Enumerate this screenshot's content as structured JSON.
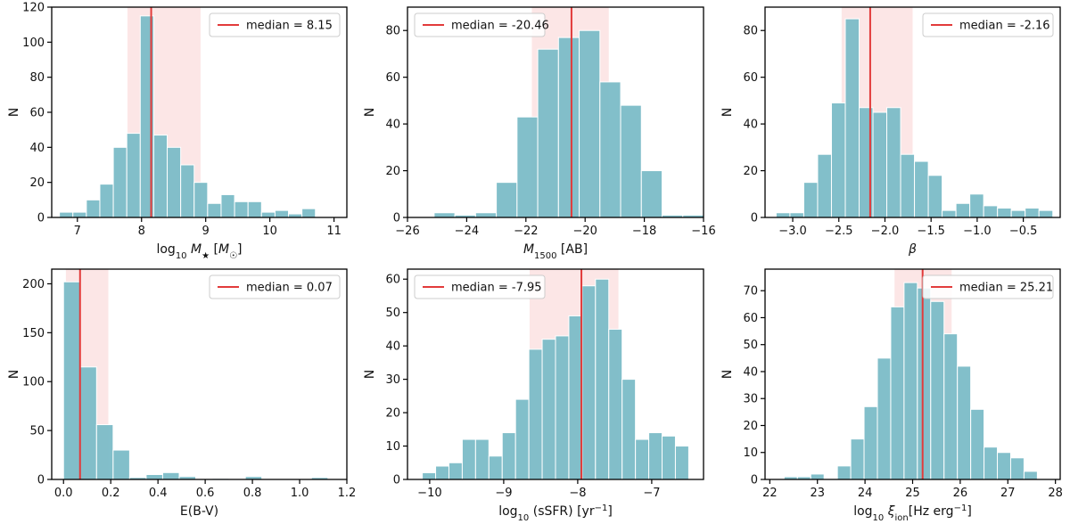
{
  "colors": {
    "bar": "#7bbcc7",
    "median": "#e23b3b",
    "band": "#fbdede",
    "axis": "#000000"
  },
  "chart_data": [
    {
      "type": "bar",
      "title": "",
      "xlabel": "log10 M★ [M☉]",
      "ylabel": "N",
      "xlim": [
        6.6,
        11.2
      ],
      "ylim": [
        0,
        120
      ],
      "xticks": [
        7,
        8,
        9,
        10,
        11
      ],
      "xtick_labels": [
        "7",
        "8",
        "9",
        "10",
        "11"
      ],
      "yticks": [
        0,
        20,
        40,
        60,
        80,
        100,
        120
      ],
      "ytick_labels": [
        "0",
        "20",
        "40",
        "60",
        "80",
        "100",
        "120"
      ],
      "bin_edges": [
        6.72,
        6.93,
        7.14,
        7.35,
        7.56,
        7.77,
        7.98,
        8.19,
        8.4,
        8.61,
        8.82,
        9.03,
        9.24,
        9.45,
        9.66,
        9.87,
        10.08,
        10.29,
        10.5,
        10.71,
        10.92
      ],
      "values": [
        3,
        3,
        10,
        19,
        40,
        48,
        115,
        47,
        40,
        30,
        20,
        8,
        13,
        9,
        9,
        3,
        4,
        2,
        5,
        0
      ],
      "median": 8.15,
      "band": [
        7.78,
        8.92
      ],
      "legend": "median = 8.15",
      "legend_position": "top-right"
    },
    {
      "type": "bar",
      "title": "",
      "xlabel": "M1500 [AB]",
      "ylabel": "N",
      "xlim": [
        -26,
        -16
      ],
      "ylim": [
        0,
        90
      ],
      "xticks": [
        -26,
        -24,
        -22,
        -20,
        -18,
        -16
      ],
      "xtick_labels": [
        "−26",
        "−24",
        "−22",
        "−20",
        "−18",
        "−16"
      ],
      "yticks": [
        0,
        20,
        40,
        60,
        80
      ],
      "ytick_labels": [
        "0",
        "20",
        "40",
        "60",
        "80"
      ],
      "bin_edges": [
        -25.8,
        -25.1,
        -24.4,
        -23.7,
        -23.0,
        -22.3,
        -21.6,
        -20.9,
        -20.2,
        -19.5,
        -18.8,
        -18.1,
        -17.4,
        -16.7,
        -16.0
      ],
      "values": [
        0,
        2,
        1,
        2,
        15,
        43,
        72,
        77,
        80,
        58,
        48,
        20,
        1,
        1
      ],
      "median": -20.46,
      "band": [
        -21.8,
        -19.2
      ],
      "legend": "median = -20.46",
      "legend_position": "top-left"
    },
    {
      "type": "bar",
      "title": "",
      "xlabel": "β",
      "ylabel": "N",
      "xlim": [
        -3.3,
        -0.1
      ],
      "ylim": [
        0,
        90
      ],
      "xticks": [
        -3.0,
        -2.5,
        -2.0,
        -1.5,
        -1.0,
        -0.5
      ],
      "xtick_labels": [
        "−3.0",
        "−2.5",
        "−2.0",
        "−1.5",
        "−1.0",
        "−0.5"
      ],
      "yticks": [
        0,
        20,
        40,
        60,
        80
      ],
      "ytick_labels": [
        "0",
        "20",
        "40",
        "60",
        "80"
      ],
      "bin_edges": [
        -3.18,
        -3.03,
        -2.88,
        -2.73,
        -2.58,
        -2.43,
        -2.28,
        -2.13,
        -1.98,
        -1.83,
        -1.68,
        -1.53,
        -1.38,
        -1.23,
        -1.08,
        -0.93,
        -0.78,
        -0.63,
        -0.48,
        -0.33,
        -0.18
      ],
      "values": [
        2,
        2,
        15,
        27,
        49,
        85,
        47,
        45,
        47,
        27,
        24,
        18,
        3,
        6,
        10,
        5,
        4,
        3,
        4,
        3
      ],
      "median": -2.16,
      "band": [
        -2.47,
        -1.7
      ],
      "legend": "median = -2.16",
      "legend_position": "top-right"
    },
    {
      "type": "bar",
      "title": "",
      "xlabel": "E(B-V)",
      "ylabel": "N",
      "xlim": [
        -0.05,
        1.2
      ],
      "ylim": [
        0,
        215
      ],
      "xticks": [
        0.0,
        0.2,
        0.4,
        0.6,
        0.8,
        1.0,
        1.2
      ],
      "xtick_labels": [
        "0.0",
        "0.2",
        "0.4",
        "0.6",
        "0.8",
        "1.0",
        "1.2"
      ],
      "yticks": [
        0,
        50,
        100,
        150,
        200
      ],
      "ytick_labels": [
        "0",
        "50",
        "100",
        "150",
        "200"
      ],
      "bin_edges": [
        0.0,
        0.07,
        0.14,
        0.21,
        0.28,
        0.35,
        0.42,
        0.49,
        0.56,
        0.63,
        0.7,
        0.77,
        0.84,
        0.91,
        0.98,
        1.05,
        1.12
      ],
      "values": [
        202,
        115,
        56,
        30,
        2,
        5,
        7,
        3,
        0,
        1,
        0,
        3,
        0,
        0,
        0,
        2
      ],
      "median": 0.07,
      "band": [
        0.01,
        0.19
      ],
      "legend": "median = 0.07",
      "legend_position": "top-right"
    },
    {
      "type": "bar",
      "title": "",
      "xlabel": "log10 (sSFR) [yr−1]",
      "ylabel": "N",
      "xlim": [
        -10.3,
        -6.3
      ],
      "ylim": [
        0,
        63
      ],
      "xticks": [
        -10,
        -9,
        -8,
        -7
      ],
      "xtick_labels": [
        "−10",
        "−9",
        "−8",
        "−7"
      ],
      "yticks": [
        0,
        10,
        20,
        30,
        40,
        50,
        60
      ],
      "ytick_labels": [
        "0",
        "10",
        "20",
        "30",
        "40",
        "50",
        "60"
      ],
      "bin_edges": [
        -10.1,
        -9.92,
        -9.74,
        -9.56,
        -9.38,
        -9.2,
        -9.02,
        -8.84,
        -8.66,
        -8.48,
        -8.3,
        -8.12,
        -7.94,
        -7.76,
        -7.58,
        -7.4,
        -7.22,
        -7.04,
        -6.86,
        -6.68,
        -6.5
      ],
      "values": [
        2,
        4,
        5,
        12,
        12,
        7,
        14,
        24,
        39,
        42,
        43,
        49,
        58,
        60,
        45,
        30,
        12,
        14,
        13,
        10
      ],
      "median": -7.95,
      "band": [
        -8.65,
        -7.45
      ],
      "legend": "median = -7.95",
      "legend_position": "top-left"
    },
    {
      "type": "bar",
      "title": "",
      "xlabel": "log10 ξion[Hz erg−1]",
      "ylabel": "N",
      "xlim": [
        21.9,
        28.1
      ],
      "ylim": [
        0,
        78
      ],
      "xticks": [
        22,
        23,
        24,
        25,
        26,
        27,
        28
      ],
      "xtick_labels": [
        "22",
        "23",
        "24",
        "25",
        "26",
        "27",
        "28"
      ],
      "yticks": [
        0,
        10,
        20,
        30,
        40,
        50,
        60,
        70
      ],
      "ytick_labels": [
        "0",
        "10",
        "20",
        "30",
        "40",
        "50",
        "60",
        "70"
      ],
      "bin_edges": [
        22.3,
        22.58,
        22.86,
        23.14,
        23.42,
        23.7,
        23.98,
        24.26,
        24.54,
        24.82,
        25.1,
        25.38,
        25.66,
        25.94,
        26.22,
        26.5,
        26.78,
        27.06,
        27.34,
        27.62
      ],
      "values": [
        1,
        1,
        2,
        0,
        5,
        15,
        27,
        45,
        64,
        73,
        71,
        66,
        54,
        42,
        26,
        12,
        10,
        8,
        3
      ],
      "median": 25.21,
      "band": [
        24.62,
        25.82
      ],
      "legend": "median = 25.21",
      "legend_position": "top-right"
    }
  ]
}
